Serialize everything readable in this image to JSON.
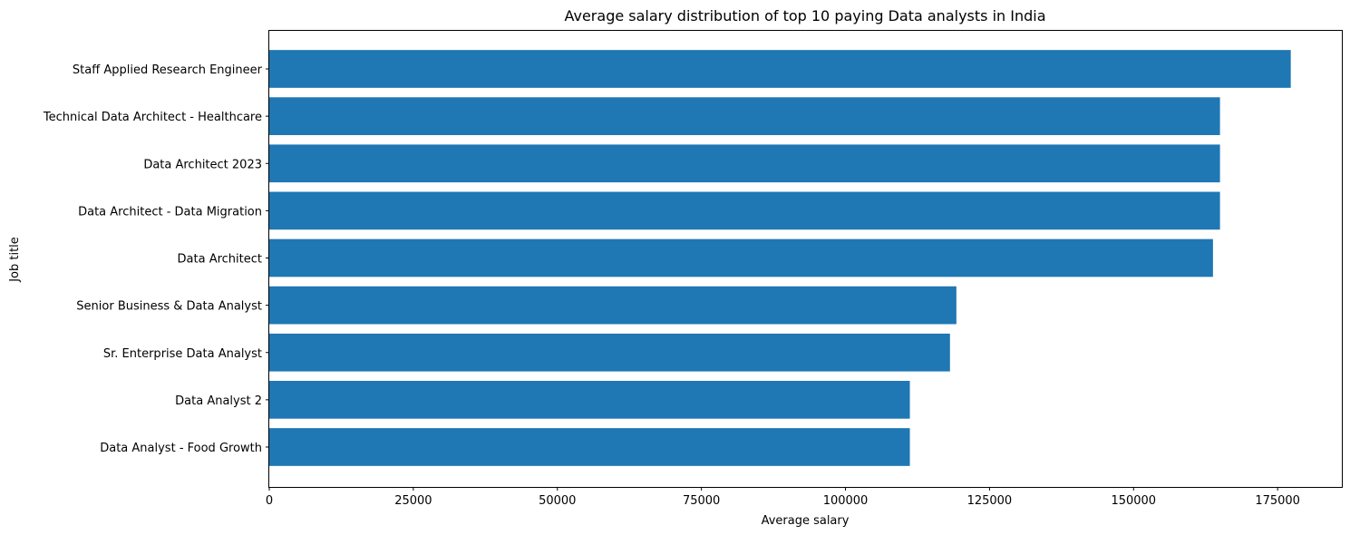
{
  "chart_data": {
    "type": "bar",
    "orientation": "horizontal",
    "title": "Average salary distribution of top 10 paying Data analysts in India",
    "xlabel": "Average salary",
    "ylabel": "Job title",
    "categories": [
      "Staff Applied Research Engineer",
      "Technical Data Architect - Healthcare",
      "Data Architect 2023",
      "Data Architect - Data Migration",
      "Data Architect",
      "Senior Business & Data Analyst",
      "Sr. Enterprise Data Analyst",
      "Data Analyst 2",
      "Data Analyst - Food Growth"
    ],
    "values": [
      177283,
      165000,
      165000,
      165000,
      163782,
      119250,
      118140,
      111175,
      111175
    ],
    "xlim": [
      0,
      186147
    ],
    "xticks": [
      0,
      25000,
      50000,
      75000,
      100000,
      125000,
      150000,
      175000
    ],
    "grid": false,
    "legend": "none",
    "bar_color": "#1f77b4"
  }
}
